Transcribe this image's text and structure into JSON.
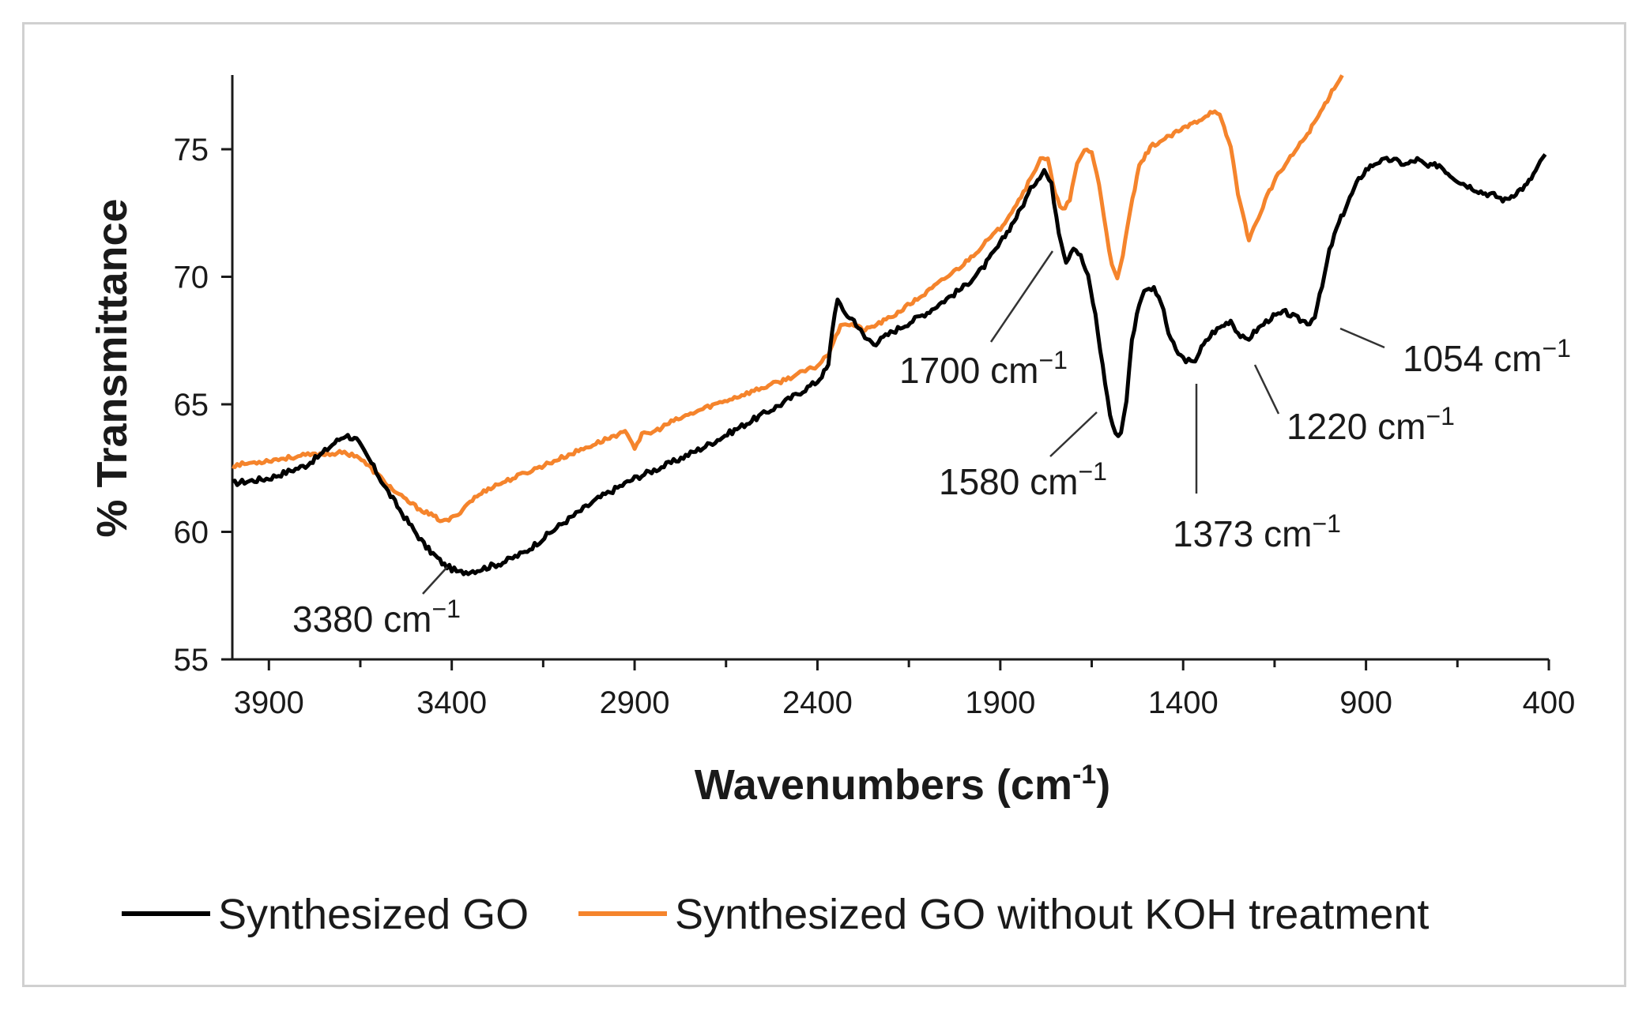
{
  "chart_data": {
    "type": "line",
    "title": "",
    "xlabel": "Wavenumbers (cm",
    "xlabel_sup": "-1",
    "xlabel_close": ")",
    "ylabel": "% Transmittance",
    "xlim": [
      4000,
      400
    ],
    "ylim": [
      55,
      78
    ],
    "x_ticks": [
      3900,
      3400,
      2900,
      2400,
      1900,
      1400,
      900,
      400
    ],
    "y_ticks": [
      55,
      60,
      65,
      70,
      75
    ],
    "legend_position": "bottom",
    "colors": {
      "black": "#000000",
      "orange": "#f5842c",
      "axis": "#1a1a1a"
    },
    "series": [
      {
        "name": "Synthesized GO",
        "color": "#000000",
        "points": [
          [
            4000,
            61.9
          ],
          [
            3900,
            62.1
          ],
          [
            3800,
            62.6
          ],
          [
            3760,
            63.0
          ],
          [
            3720,
            63.5
          ],
          [
            3690,
            63.8
          ],
          [
            3660,
            63.6
          ],
          [
            3620,
            62.7
          ],
          [
            3580,
            61.7
          ],
          [
            3530,
            60.6
          ],
          [
            3470,
            59.4
          ],
          [
            3420,
            58.7
          ],
          [
            3380,
            58.4
          ],
          [
            3330,
            58.5
          ],
          [
            3260,
            58.8
          ],
          [
            3200,
            59.2
          ],
          [
            3100,
            60.3
          ],
          [
            3000,
            61.3
          ],
          [
            2900,
            62.1
          ],
          [
            2800,
            62.7
          ],
          [
            2700,
            63.4
          ],
          [
            2600,
            64.2
          ],
          [
            2500,
            65.0
          ],
          [
            2400,
            65.9
          ],
          [
            2370,
            66.5
          ],
          [
            2360,
            67.9
          ],
          [
            2345,
            69.2
          ],
          [
            2330,
            68.6
          ],
          [
            2300,
            68.3
          ],
          [
            2270,
            67.6
          ],
          [
            2240,
            67.4
          ],
          [
            2200,
            67.8
          ],
          [
            2100,
            68.6
          ],
          [
            2000,
            69.6
          ],
          [
            1950,
            70.3
          ],
          [
            1900,
            71.3
          ],
          [
            1850,
            72.5
          ],
          [
            1810,
            73.6
          ],
          [
            1780,
            74.2
          ],
          [
            1760,
            73.6
          ],
          [
            1740,
            71.8
          ],
          [
            1720,
            70.6
          ],
          [
            1700,
            71.2
          ],
          [
            1680,
            70.8
          ],
          [
            1660,
            70.0
          ],
          [
            1640,
            68.5
          ],
          [
            1620,
            66.5
          ],
          [
            1600,
            64.6
          ],
          [
            1585,
            63.8
          ],
          [
            1570,
            63.9
          ],
          [
            1555,
            65.2
          ],
          [
            1540,
            67.5
          ],
          [
            1520,
            69.0
          ],
          [
            1500,
            69.6
          ],
          [
            1480,
            69.5
          ],
          [
            1460,
            69.0
          ],
          [
            1440,
            67.8
          ],
          [
            1420,
            67.1
          ],
          [
            1400,
            66.8
          ],
          [
            1385,
            66.7
          ],
          [
            1373,
            66.6
          ],
          [
            1350,
            67.2
          ],
          [
            1320,
            67.8
          ],
          [
            1300,
            68.0
          ],
          [
            1270,
            68.3
          ],
          [
            1250,
            67.8
          ],
          [
            1230,
            67.5
          ],
          [
            1220,
            67.6
          ],
          [
            1200,
            67.9
          ],
          [
            1160,
            68.4
          ],
          [
            1120,
            68.6
          ],
          [
            1080,
            68.3
          ],
          [
            1054,
            68.2
          ],
          [
            1040,
            68.5
          ],
          [
            1020,
            69.6
          ],
          [
            1000,
            71.0
          ],
          [
            980,
            71.9
          ],
          [
            950,
            72.9
          ],
          [
            920,
            73.8
          ],
          [
            900,
            74.2
          ],
          [
            870,
            74.5
          ],
          [
            830,
            74.6
          ],
          [
            790,
            74.4
          ],
          [
            760,
            74.6
          ],
          [
            730,
            74.3
          ],
          [
            700,
            74.4
          ],
          [
            670,
            74.0
          ],
          [
            640,
            73.7
          ],
          [
            610,
            73.5
          ],
          [
            580,
            73.3
          ],
          [
            550,
            73.2
          ],
          [
            520,
            73.0
          ],
          [
            490,
            73.3
          ],
          [
            460,
            73.6
          ],
          [
            430,
            74.3
          ],
          [
            410,
            74.8
          ]
        ]
      },
      {
        "name": "Synthesized GO without KOH treatment",
        "color": "#f5842c",
        "points": [
          [
            4000,
            62.6
          ],
          [
            3900,
            62.8
          ],
          [
            3800,
            63.0
          ],
          [
            3700,
            63.1
          ],
          [
            3660,
            63.0
          ],
          [
            3600,
            62.2
          ],
          [
            3550,
            61.5
          ],
          [
            3500,
            61.0
          ],
          [
            3450,
            60.6
          ],
          [
            3420,
            60.4
          ],
          [
            3390,
            60.6
          ],
          [
            3350,
            61.2
          ],
          [
            3300,
            61.7
          ],
          [
            3200,
            62.3
          ],
          [
            3100,
            62.9
          ],
          [
            3000,
            63.5
          ],
          [
            2950,
            63.8
          ],
          [
            2920,
            63.9
          ],
          [
            2900,
            63.3
          ],
          [
            2880,
            63.8
          ],
          [
            2850,
            63.9
          ],
          [
            2800,
            64.3
          ],
          [
            2700,
            64.9
          ],
          [
            2600,
            65.4
          ],
          [
            2500,
            65.9
          ],
          [
            2400,
            66.5
          ],
          [
            2370,
            67.0
          ],
          [
            2350,
            67.7
          ],
          [
            2330,
            68.2
          ],
          [
            2300,
            68.1
          ],
          [
            2270,
            67.9
          ],
          [
            2200,
            68.4
          ],
          [
            2100,
            69.4
          ],
          [
            2000,
            70.5
          ],
          [
            1900,
            71.9
          ],
          [
            1850,
            73.0
          ],
          [
            1810,
            74.0
          ],
          [
            1790,
            74.7
          ],
          [
            1770,
            74.6
          ],
          [
            1750,
            73.2
          ],
          [
            1730,
            72.6
          ],
          [
            1710,
            73.0
          ],
          [
            1690,
            74.4
          ],
          [
            1670,
            75.0
          ],
          [
            1650,
            74.9
          ],
          [
            1630,
            73.6
          ],
          [
            1610,
            71.8
          ],
          [
            1595,
            70.4
          ],
          [
            1580,
            69.9
          ],
          [
            1565,
            70.8
          ],
          [
            1545,
            72.6
          ],
          [
            1520,
            74.3
          ],
          [
            1490,
            75.1
          ],
          [
            1450,
            75.4
          ],
          [
            1400,
            75.8
          ],
          [
            1350,
            76.2
          ],
          [
            1320,
            76.5
          ],
          [
            1300,
            76.3
          ],
          [
            1270,
            75.1
          ],
          [
            1250,
            73.3
          ],
          [
            1230,
            72.0
          ],
          [
            1220,
            71.5
          ],
          [
            1200,
            72.1
          ],
          [
            1170,
            73.2
          ],
          [
            1140,
            74.0
          ],
          [
            1100,
            74.8
          ],
          [
            1060,
            75.6
          ],
          [
            1030,
            76.3
          ],
          [
            1000,
            77.1
          ],
          [
            980,
            77.6
          ],
          [
            965,
            77.9
          ]
        ]
      }
    ],
    "annotations": [
      {
        "label": "3380 cm",
        "sup": "−1",
        "x": 3380
      },
      {
        "label": "1700 cm",
        "sup": "−1",
        "x": 1700
      },
      {
        "label": "1580 cm",
        "sup": "−1",
        "x": 1580
      },
      {
        "label": "1373 cm",
        "sup": "−1",
        "x": 1373
      },
      {
        "label": "1220 cm",
        "sup": "−1",
        "x": 1220
      },
      {
        "label": "1054 cm",
        "sup": "−1",
        "x": 1054
      }
    ]
  }
}
